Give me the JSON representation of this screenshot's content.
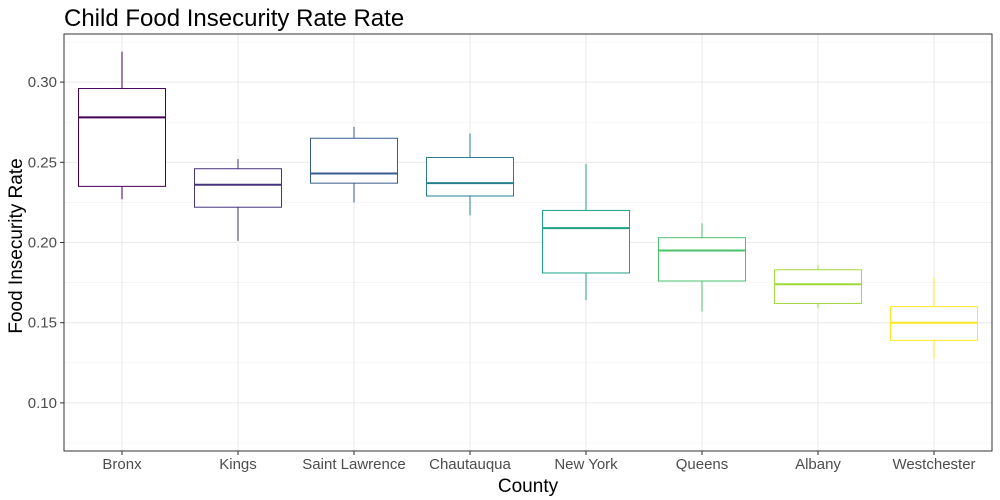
{
  "chart_data": {
    "type": "boxplot",
    "title": "Child Food Insecurity Rate Rate",
    "xlabel": "County",
    "ylabel": "Food Insecurity Rate",
    "ylim": [
      0.07,
      0.33
    ],
    "yticks": [
      0.1,
      0.15,
      0.2,
      0.25,
      0.3
    ],
    "ytick_labels": [
      "0.10",
      "0.15",
      "0.20",
      "0.25",
      "0.30"
    ],
    "grid": true,
    "categories": [
      "Bronx",
      "Kings",
      "Saint Lawrence",
      "Chautauqua",
      "New York",
      "Queens",
      "Albany",
      "Westchester"
    ],
    "boxes": [
      {
        "category": "Bronx",
        "min": 0.227,
        "q1": 0.235,
        "median": 0.278,
        "q3": 0.296,
        "max": 0.319,
        "color": "#440154"
      },
      {
        "category": "Kings",
        "min": 0.201,
        "q1": 0.222,
        "median": 0.236,
        "q3": 0.246,
        "max": 0.252,
        "color": "#46337e"
      },
      {
        "category": "Saint Lawrence",
        "min": 0.225,
        "q1": 0.237,
        "median": 0.243,
        "q3": 0.265,
        "max": 0.272,
        "color": "#365c8d"
      },
      {
        "category": "Chautauqua",
        "min": 0.217,
        "q1": 0.229,
        "median": 0.237,
        "q3": 0.253,
        "max": 0.268,
        "color": "#277f8e"
      },
      {
        "category": "New York",
        "min": 0.164,
        "q1": 0.181,
        "median": 0.209,
        "q3": 0.22,
        "max": 0.249,
        "color": "#1fa187"
      },
      {
        "category": "Queens",
        "min": 0.157,
        "q1": 0.176,
        "median": 0.195,
        "q3": 0.203,
        "max": 0.212,
        "color": "#4ac16d"
      },
      {
        "category": "Albany",
        "min": 0.159,
        "q1": 0.162,
        "median": 0.174,
        "q3": 0.183,
        "max": 0.186,
        "color": "#a0da39"
      },
      {
        "category": "Westchester",
        "min": 0.128,
        "q1": 0.139,
        "median": 0.15,
        "q3": 0.16,
        "max": 0.178,
        "color": "#fde725"
      }
    ]
  }
}
